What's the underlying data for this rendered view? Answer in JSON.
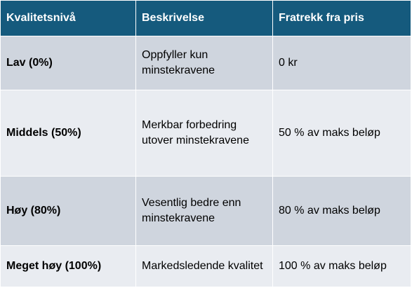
{
  "table": {
    "headers": [
      "Kvalitetsnivå",
      "Beskrivelse",
      "Fratrekk fra pris"
    ],
    "rows": [
      {
        "level": "Lav (0%)",
        "description": "Oppfyller kun minstekravene",
        "deduction": "0 kr"
      },
      {
        "level": "Middels (50%)",
        "description": "Merkbar forbedring utover minstekravene",
        "deduction": "50 % av maks beløp"
      },
      {
        "level": "Høy (80%)",
        "description": "Vesentlig bedre enn minstekravene",
        "deduction": "80 % av maks beløp"
      },
      {
        "level": "Meget høy (100%)",
        "description": "Markedsledende kvalitet",
        "deduction": "100 % av maks beløp"
      }
    ]
  },
  "colors": {
    "header_background": "#155a7d",
    "header_text": "#ffffff",
    "row_odd": "#cfd5de",
    "row_even": "#e9ecf1"
  }
}
